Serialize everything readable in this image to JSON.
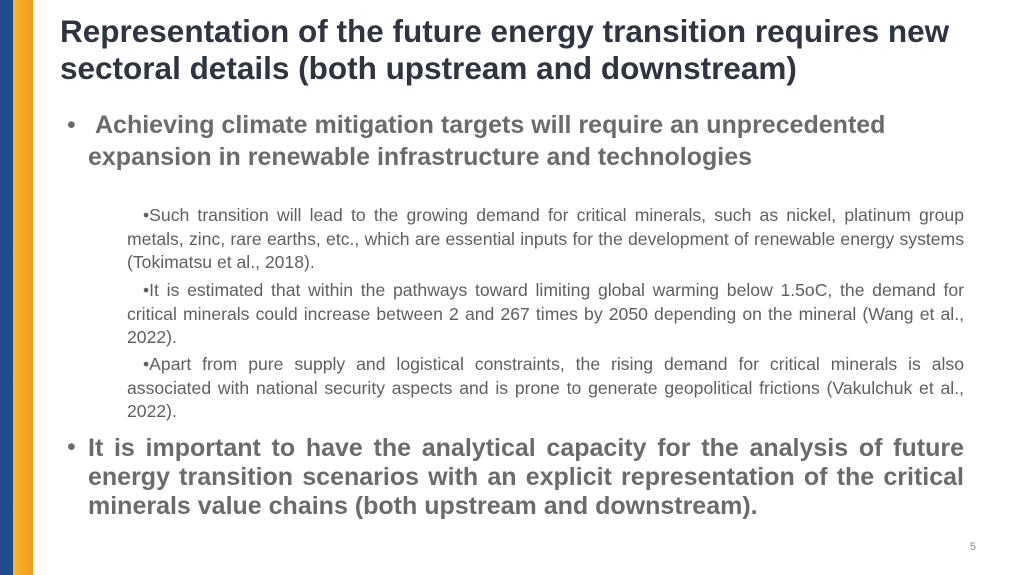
{
  "title": "Representation of the future energy transition requires new sectoral details (both upstream and downstream)",
  "bullets": [
    {
      "text": "Achieving climate mitigation targets will require an unprecedented expansion in renewable infrastructure and technologies",
      "sub_bullets": [
        "Such transition will lead to the growing demand for critical minerals, such as nickel, platinum group metals, zinc, rare earths, etc., which are essential inputs for the development of renewable energy systems (Tokimatsu et al., 2018).",
        "It is estimated that within the pathways toward limiting global warming below 1.5oC, the demand for critical minerals could increase between 2 and 267 times by 2050 depending on the mineral (Wang et al., 2022).",
        "Apart from pure supply and logistical constraints, the rising demand for critical minerals is also associated with national security aspects and is prone to generate geopolitical frictions (Vakulchuk et al., 2022)."
      ]
    },
    {
      "text": "It is important to have the analytical capacity for the analysis of future energy transition scenarios with an explicit representation of the critical minerals value chains (both upstream and downstream)."
    }
  ],
  "page_number": "5"
}
